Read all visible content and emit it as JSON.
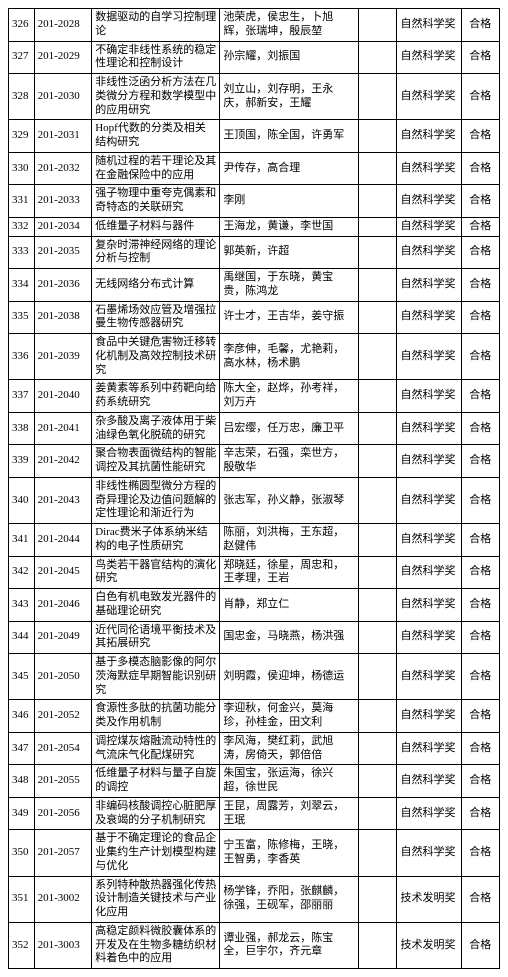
{
  "rows": [
    {
      "idx": "326",
      "code": "201-2028",
      "title": "数据驱动的自学习控制理论",
      "people": "池荣虎，侯忠生，卜旭辉，张瑞坤，殷辰堃",
      "award": "自然科学奖",
      "status": "合格"
    },
    {
      "idx": "327",
      "code": "201-2029",
      "title": "不确定非线性系统的稳定性理论和控制设计",
      "people": "孙宗耀，刘振国",
      "award": "自然科学奖",
      "status": "合格"
    },
    {
      "idx": "328",
      "code": "201-2030",
      "title": "非线性泛函分析方法在几类微分方程和数学模型中的应用研究",
      "people": "刘立山，刘存明，王永庆，郝新安，王耀",
      "award": "自然科学奖",
      "status": "合格"
    },
    {
      "idx": "329",
      "code": "201-2031",
      "title": "Hopf代数的分类及相关结构研究",
      "people": "王顶国，陈全国，许勇军",
      "award": "自然科学奖",
      "status": "合格"
    },
    {
      "idx": "330",
      "code": "201-2032",
      "title": "随机过程的若干理论及其在金融保险中的应用",
      "people": "尹传存，高合理",
      "award": "自然科学奖",
      "status": "合格"
    },
    {
      "idx": "331",
      "code": "201-2033",
      "title": "强子物理中重夸克偶素和奇特态的关联研究",
      "people": "李刚",
      "award": "自然科学奖",
      "status": "合格"
    },
    {
      "idx": "332",
      "code": "201-2034",
      "title": "低维量子材料与器件",
      "people": "王海龙，黄谦，李世国",
      "award": "自然科学奖",
      "status": "合格"
    },
    {
      "idx": "333",
      "code": "201-2035",
      "title": "复杂时滞神经网络的理论分析与控制",
      "people": "郭英新，许超",
      "award": "自然科学奖",
      "status": "合格"
    },
    {
      "idx": "334",
      "code": "201-2036",
      "title": "无线网络分布式计算",
      "people": "禹继国，于东晓，黄宝贵，陈鸿龙",
      "award": "自然科学奖",
      "status": "合格"
    },
    {
      "idx": "335",
      "code": "201-2038",
      "title": "石墨烯场效应管及增强拉曼生物传感器研究",
      "people": "许士才，王吉华，姜守振",
      "award": "自然科学奖",
      "status": "合格"
    },
    {
      "idx": "336",
      "code": "201-2039",
      "title": "食品中关键危害物迁移转化机制及高效控制技术研究",
      "people": "李彦伸，毛馨，尤艳莉，高水林，杨术鹏",
      "award": "自然科学奖",
      "status": "合格"
    },
    {
      "idx": "337",
      "code": "201-2040",
      "title": "姜黄素等系列中药靶向给药系统研究",
      "people": "陈大全，赵烨，孙考祥，刘万卉",
      "award": "自然科学奖",
      "status": "合格"
    },
    {
      "idx": "338",
      "code": "201-2041",
      "title": "杂多酸及离子液体用于柴油绿色氧化脱硫的研究",
      "people": "吕宏缨，任万忠，廉卫平",
      "award": "自然科学奖",
      "status": "合格"
    },
    {
      "idx": "339",
      "code": "201-2042",
      "title": "聚合物表面微结构的智能调控及其抗菌性能研究",
      "people": "辛志荣，石强，栾世方，殷敬华",
      "award": "自然科学奖",
      "status": "合格"
    },
    {
      "idx": "340",
      "code": "201-2043",
      "title": "非线性椭圆型微分方程的奇异理论及边值问题解的定性理论和渐近行为",
      "people": "张志军，孙义静，张淑琴",
      "award": "自然科学奖",
      "status": "合格"
    },
    {
      "idx": "341",
      "code": "201-2044",
      "title": "Dirac费米子体系纳米结构的电子性质研究",
      "people": "陈丽，刘洪梅，王东超，赵健伟",
      "award": "自然科学奖",
      "status": "合格"
    },
    {
      "idx": "342",
      "code": "201-2045",
      "title": "鸟类若干器官结构的演化研究",
      "people": "郑晓廷，徐星，周忠和，王孝理，王岩",
      "award": "自然科学奖",
      "status": "合格"
    },
    {
      "idx": "343",
      "code": "201-2046",
      "title": "白色有机电致发光器件的基础理论研究",
      "people": "肖静，郑立仁",
      "award": "自然科学奖",
      "status": "合格"
    },
    {
      "idx": "344",
      "code": "201-2049",
      "title": "近代同伦语境平衡技术及其拓展研究",
      "people": "国忠金，马晓燕，杨洪强",
      "award": "自然科学奖",
      "status": "合格"
    },
    {
      "idx": "345",
      "code": "201-2050",
      "title": "基于多模态脑影像的阿尔茨海默症早期智能识别研究",
      "people": "刘明霞，侯迎坤，杨德运",
      "award": "自然科学奖",
      "status": "合格"
    },
    {
      "idx": "346",
      "code": "201-2052",
      "title": "食源性多肽的抗菌功能分类及作用机制",
      "people": "李迎秋，何金兴，莫海珍，孙桂金，田文利",
      "award": "自然科学奖",
      "status": "合格"
    },
    {
      "idx": "347",
      "code": "201-2054",
      "title": "调控煤灰熔融流动特性的气流床气化配煤研究",
      "people": "李风海，樊红莉，武旭涛，房倚天，郭倍倍",
      "award": "自然科学奖",
      "status": "合格"
    },
    {
      "idx": "348",
      "code": "201-2055",
      "title": "低维量子材料与量子自旋的调控",
      "people": "朱国宝，张运海，徐兴超，徐世民",
      "award": "自然科学奖",
      "status": "合格"
    },
    {
      "idx": "349",
      "code": "201-2056",
      "title": "非编码核酸调控心脏肥厚及衰竭的分子机制研究",
      "people": "王昆，周露芳，刘翠云，王珉",
      "award": "自然科学奖",
      "status": "合格"
    },
    {
      "idx": "350",
      "code": "201-2057",
      "title": "基于不确定理论的食品企业集约生产计划模型构建与优化",
      "people": "宁玉富，陈修梅，王晓，王智勇，李香英",
      "award": "自然科学奖",
      "status": "合格"
    },
    {
      "idx": "351",
      "code": "201-3002",
      "title": "系列特种散热器强化传热设计制造关键技术与产业化应用",
      "people": "杨学锋，乔阳，张麒麟，徐强，王砚军，邵丽丽",
      "award": "技术发明奖",
      "status": "合格"
    },
    {
      "idx": "352",
      "code": "201-3003",
      "title": "高稳定颜料微胶囊体系的开发及在生物多糖纺织材料着色中的应用",
      "people": "谭业强，郝龙云，陈宝全，巨宇尔，齐元章",
      "award": "技术发明奖",
      "status": "合格"
    }
  ]
}
